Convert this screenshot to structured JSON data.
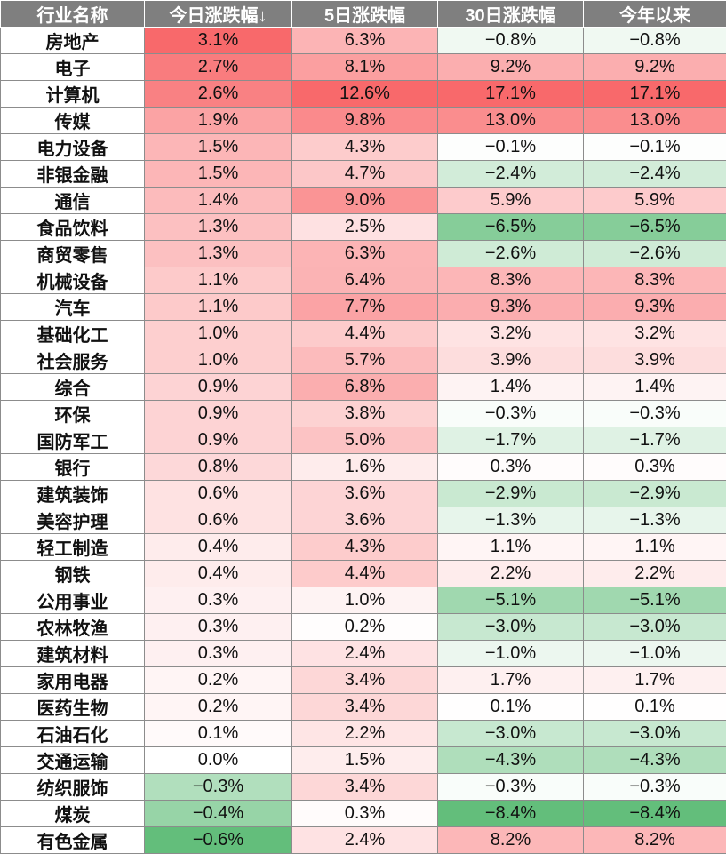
{
  "chart_data": {
    "type": "table",
    "columns": [
      "行业名称",
      "今日涨跌幅↓",
      "5日涨跌幅",
      "30日涨跌幅",
      "今年以来"
    ],
    "rows": [
      [
        "房地产",
        "3.1%",
        "6.3%",
        "−0.8%",
        "−0.8%"
      ],
      [
        "电子",
        "2.7%",
        "8.1%",
        "9.2%",
        "9.2%"
      ],
      [
        "计算机",
        "2.6%",
        "12.6%",
        "17.1%",
        "17.1%"
      ],
      [
        "传媒",
        "1.9%",
        "9.8%",
        "13.0%",
        "13.0%"
      ],
      [
        "电力设备",
        "1.5%",
        "4.3%",
        "−0.1%",
        "−0.1%"
      ],
      [
        "非银金融",
        "1.5%",
        "4.7%",
        "−2.4%",
        "−2.4%"
      ],
      [
        "通信",
        "1.4%",
        "9.0%",
        "5.9%",
        "5.9%"
      ],
      [
        "食品饮料",
        "1.3%",
        "2.5%",
        "−6.5%",
        "−6.5%"
      ],
      [
        "商贸零售",
        "1.3%",
        "6.3%",
        "−2.6%",
        "−2.6%"
      ],
      [
        "机械设备",
        "1.1%",
        "6.4%",
        "8.3%",
        "8.3%"
      ],
      [
        "汽车",
        "1.1%",
        "7.7%",
        "9.3%",
        "9.3%"
      ],
      [
        "基础化工",
        "1.0%",
        "4.4%",
        "3.2%",
        "3.2%"
      ],
      [
        "社会服务",
        "1.0%",
        "5.7%",
        "3.9%",
        "3.9%"
      ],
      [
        "综合",
        "0.9%",
        "6.8%",
        "1.4%",
        "1.4%"
      ],
      [
        "环保",
        "0.9%",
        "3.8%",
        "−0.3%",
        "−0.3%"
      ],
      [
        "国防军工",
        "0.9%",
        "5.0%",
        "−1.7%",
        "−1.7%"
      ],
      [
        "银行",
        "0.8%",
        "1.6%",
        "0.3%",
        "0.3%"
      ],
      [
        "建筑装饰",
        "0.6%",
        "3.6%",
        "−2.9%",
        "−2.9%"
      ],
      [
        "美容护理",
        "0.6%",
        "3.6%",
        "−1.3%",
        "−1.3%"
      ],
      [
        "轻工制造",
        "0.4%",
        "4.3%",
        "1.1%",
        "1.1%"
      ],
      [
        "钢铁",
        "0.4%",
        "4.4%",
        "2.2%",
        "2.2%"
      ],
      [
        "公用事业",
        "0.3%",
        "1.0%",
        "−5.1%",
        "−5.1%"
      ],
      [
        "农林牧渔",
        "0.3%",
        "0.2%",
        "−3.0%",
        "−3.0%"
      ],
      [
        "建筑材料",
        "0.3%",
        "2.4%",
        "−1.0%",
        "−1.0%"
      ],
      [
        "家用电器",
        "0.2%",
        "3.4%",
        "1.7%",
        "1.7%"
      ],
      [
        "医药生物",
        "0.2%",
        "3.4%",
        "0.1%",
        "0.1%"
      ],
      [
        "石油石化",
        "0.1%",
        "2.2%",
        "−3.0%",
        "−3.0%"
      ],
      [
        "交通运输",
        "0.0%",
        "1.5%",
        "−4.3%",
        "−4.3%"
      ],
      [
        "纺织服饰",
        "−0.3%",
        "3.4%",
        "−0.3%",
        "−0.3%"
      ],
      [
        "煤炭",
        "−0.4%",
        "0.3%",
        "−8.4%",
        "−8.4%"
      ],
      [
        "有色金属",
        "−0.6%",
        "2.4%",
        "8.2%",
        "8.2%"
      ]
    ],
    "colors": {
      "header_bg": "#7f7f7f",
      "header_text": "#ffffff",
      "positive": "#f8696b",
      "negative": "#63be7b",
      "neutral": "#ffffff"
    }
  }
}
